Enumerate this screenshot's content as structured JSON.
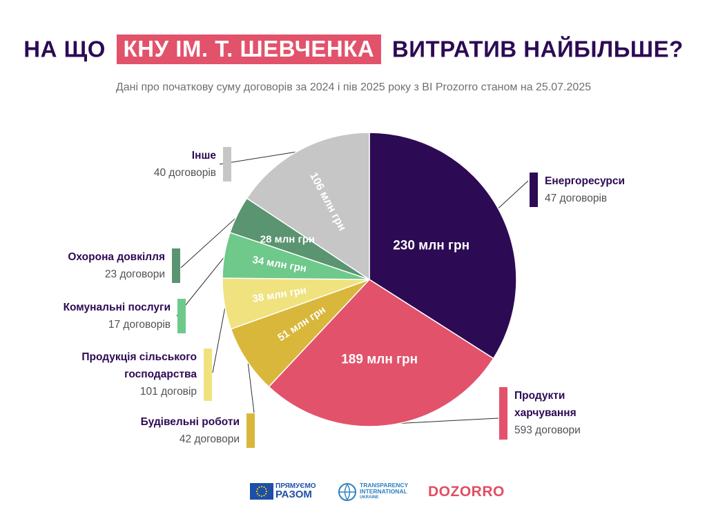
{
  "header": {
    "title_pre": "НА ЩО",
    "title_highlight": "КНУ ІМ. Т. ШЕВЧЕНКА",
    "title_post": "ВИТРАТИВ  НАЙБІЛЬШЕ?",
    "subtitle": "Дані про початкову суму договорів за 2024 і пів 2025 року з BI Prozorro станом на 25.07.2025"
  },
  "colors": {
    "title": "#2d0a54",
    "highlight": "#e2526b"
  },
  "chart_data": {
    "type": "pie",
    "slices": [
      {
        "name": "Енергоресурси",
        "value": 230,
        "value_label": "230 млн грн",
        "count_label": "47 договорів",
        "color": "#2d0a54"
      },
      {
        "name": "Продукти харчування",
        "value": 189,
        "value_label": "189 млн грн",
        "count_label": "593 договори",
        "color": "#e2526b"
      },
      {
        "name": "Будівельні роботи",
        "value": 51,
        "value_label": "51 млн грн",
        "count_label": "42 договори",
        "color": "#d9b73a"
      },
      {
        "name": "Продукція сільського господарства",
        "value": 38,
        "value_label": "38 млн грн",
        "count_label": "101 договір",
        "color": "#f0e27f"
      },
      {
        "name": "Комунальні послуги",
        "value": 34,
        "value_label": "34 млн грн",
        "count_label": "17 договорів",
        "color": "#6ec98a"
      },
      {
        "name": "Охорона довкілля",
        "value": 28,
        "value_label": "28 млн грн",
        "count_label": "23 договори",
        "color": "#5a9470"
      },
      {
        "name": "Інше",
        "value": 106,
        "value_label": "106 млн грн",
        "count_label": "40 договорів",
        "color": "#c6c6c6"
      }
    ],
    "legend": {
      "energy": {
        "name": "Енергоресурси",
        "count": "47 договорів"
      },
      "food": {
        "name_l1": "Продукти",
        "name_l2": "харчування",
        "count": "593 договори"
      },
      "construction": {
        "name": "Будівельні роботи",
        "count": "42 договори"
      },
      "agri": {
        "name_l1": "Продукція сільського",
        "name_l2": "господарства",
        "count": "101 договір"
      },
      "utility": {
        "name": "Комунальні послуги",
        "count": "17 договорів"
      },
      "env": {
        "name": "Охорона довкілля",
        "count": "23 договори"
      },
      "other": {
        "name": "Інше",
        "count": "40 договорів"
      }
    }
  },
  "logos": {
    "eu_line1": "ПРЯМУЄМО",
    "eu_line2": "РАЗОМ",
    "ti_line1": "TRANSPARENCY",
    "ti_line2": "INTERNATIONAL",
    "ti_line3": "UKRAINE",
    "dozorro": "DOZORRO",
    "eu_icon": "eu-flag-icon",
    "ti_icon": "ti-globe-icon"
  }
}
